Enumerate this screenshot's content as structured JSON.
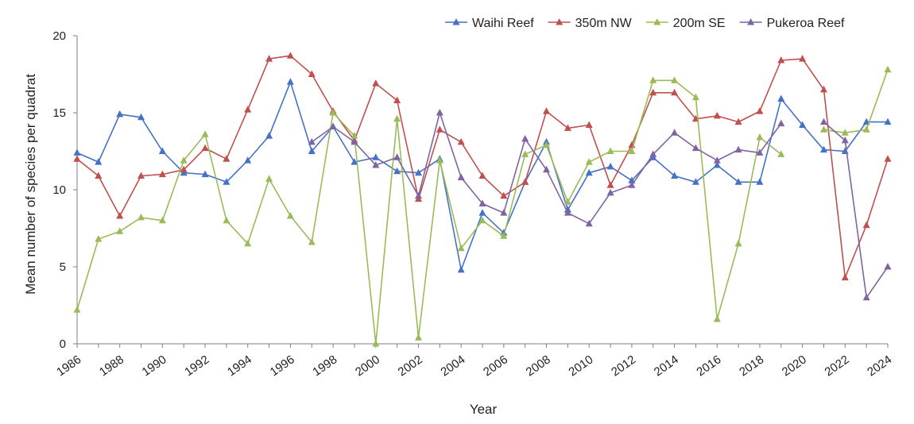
{
  "chart_data": {
    "type": "line",
    "xlabel": "Year",
    "ylabel": "Mean number of species per quadrat",
    "xlim": [
      1986,
      2024
    ],
    "ylim": [
      0,
      20
    ],
    "x_ticks": [
      1986,
      1988,
      1990,
      1992,
      1994,
      1996,
      1998,
      2000,
      2002,
      2004,
      2006,
      2008,
      2010,
      2012,
      2014,
      2016,
      2018,
      2020,
      2022,
      2024
    ],
    "y_ticks": [
      0,
      5,
      10,
      15,
      20
    ],
    "grid": false,
    "legend": "top-right",
    "x": [
      1986,
      1987,
      1988,
      1989,
      1990,
      1991,
      1992,
      1993,
      1994,
      1995,
      1996,
      1997,
      1998,
      1999,
      2000,
      2001,
      2002,
      2003,
      2004,
      2005,
      2006,
      2007,
      2008,
      2009,
      2010,
      2011,
      2012,
      2013,
      2014,
      2015,
      2016,
      2017,
      2018,
      2019,
      2020,
      2021,
      2022,
      2023,
      2024
    ],
    "series": [
      {
        "name": "Waihi Reef",
        "color": "#4472C4",
        "values": [
          12.4,
          11.8,
          14.9,
          14.7,
          12.5,
          11.1,
          11.0,
          10.5,
          11.9,
          13.5,
          17.0,
          12.5,
          14.1,
          11.8,
          12.1,
          11.2,
          11.1,
          12.0,
          4.8,
          8.5,
          7.2,
          10.5,
          13.1,
          8.7,
          11.1,
          11.5,
          10.6,
          12.1,
          10.9,
          10.5,
          11.6,
          10.5,
          10.5,
          15.9,
          14.2,
          12.6,
          12.5,
          14.4,
          14.4
        ]
      },
      {
        "name": "350m NW",
        "color": "#C0504D",
        "values": [
          12.0,
          10.9,
          8.3,
          10.9,
          11.0,
          11.3,
          12.7,
          12.0,
          15.2,
          18.5,
          18.7,
          17.5,
          15.1,
          13.2,
          16.9,
          15.8,
          9.4,
          13.9,
          13.1,
          10.9,
          9.6,
          10.5,
          15.1,
          14.0,
          14.2,
          10.3,
          12.9,
          16.3,
          16.3,
          14.6,
          14.8,
          14.4,
          15.1,
          18.4,
          18.5,
          16.5,
          4.3,
          7.7,
          12.0
        ]
      },
      {
        "name": "200m SE",
        "color": "#9BBB59",
        "values": [
          2.2,
          6.8,
          7.3,
          8.2,
          8.0,
          11.9,
          13.6,
          8.0,
          6.5,
          10.7,
          8.3,
          6.6,
          15.0,
          13.5,
          0.0,
          14.6,
          0.4,
          11.9,
          6.2,
          8.0,
          7.0,
          12.3,
          12.9,
          9.2,
          11.8,
          12.5,
          12.5,
          17.1,
          17.1,
          16.0,
          1.6,
          6.5,
          13.4,
          12.3,
          null,
          13.9,
          13.7,
          13.9,
          17.8
        ]
      },
      {
        "name": "Pukeroa Reef",
        "color": "#8064A2",
        "values": [
          null,
          null,
          null,
          null,
          null,
          null,
          null,
          null,
          null,
          null,
          null,
          13.1,
          14.1,
          13.1,
          11.6,
          12.1,
          9.6,
          15.0,
          10.8,
          9.1,
          8.5,
          13.3,
          11.3,
          8.5,
          7.8,
          9.8,
          10.3,
          12.3,
          13.7,
          12.7,
          11.9,
          12.6,
          12.4,
          14.3,
          null,
          14.4,
          13.2,
          3.0,
          5.0
        ]
      }
    ]
  }
}
